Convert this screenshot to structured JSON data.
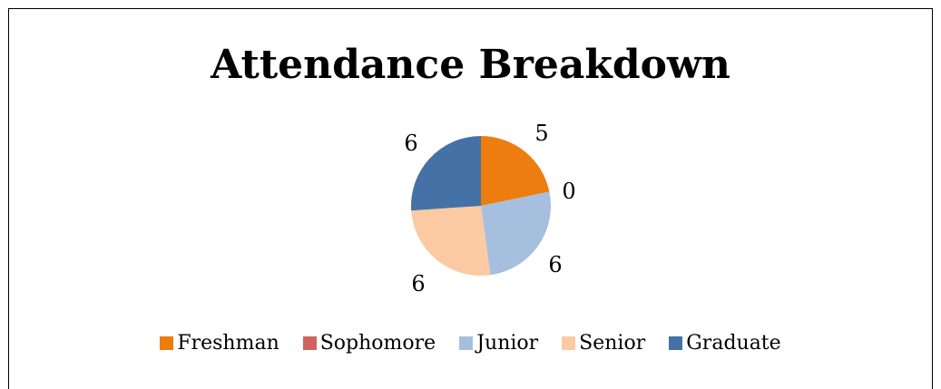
{
  "chart_data": {
    "type": "pie",
    "title": "Attendance Breakdown",
    "categories": [
      "Freshman",
      "Sophomore",
      "Junior",
      "Senior",
      "Graduate"
    ],
    "values": [
      5,
      0,
      6,
      6,
      6
    ],
    "data_labels": [
      "5",
      "0",
      "6",
      "6",
      "6"
    ],
    "colors": [
      "#ED7D0E",
      "#D0645C",
      "#A7BFDE",
      "#FBCAA2",
      "#4472A6"
    ],
    "legend": {
      "position": "bottom",
      "entries": [
        "Freshman",
        "Sophomore",
        "Junior",
        "Senior",
        "Graduate"
      ]
    }
  }
}
